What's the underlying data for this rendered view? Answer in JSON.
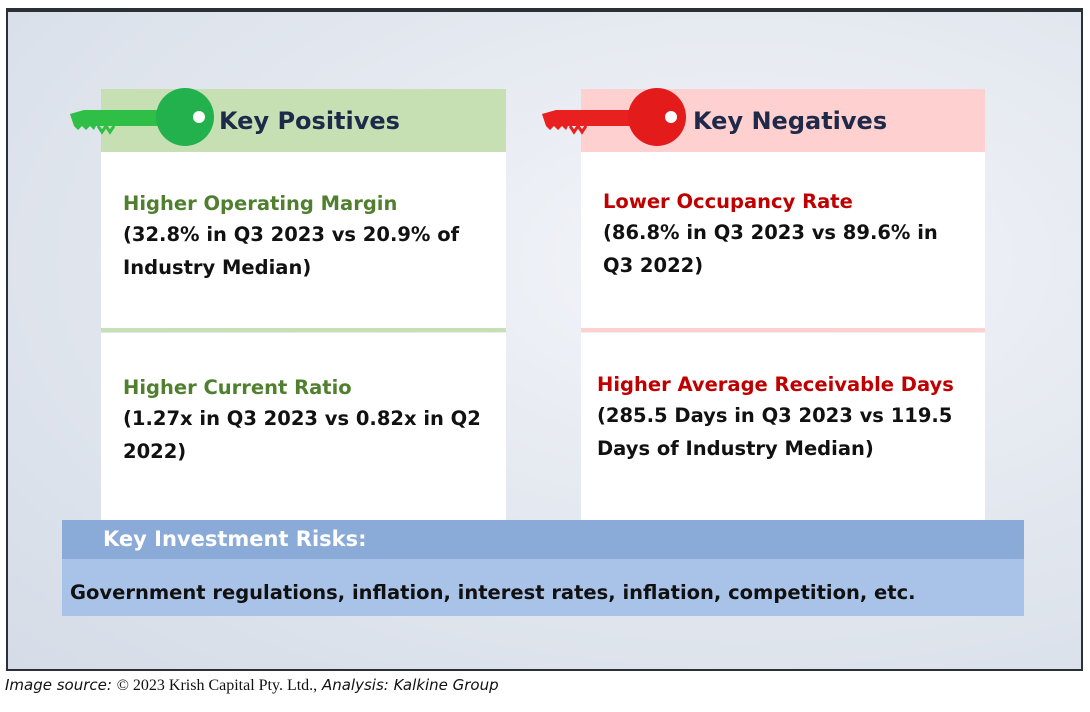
{
  "positives": {
    "title": "Key Positives",
    "color": "#22b14c",
    "items": [
      {
        "title": "Higher Operating Margin",
        "body": "(32.8% in Q3 2023 vs 20.9% of Industry Median)"
      },
      {
        "title": "Higher Current Ratio",
        "body": "(1.27x in Q3 2023 vs 0.82x in Q2 2022)"
      }
    ]
  },
  "negatives": {
    "title": "Key Negatives",
    "color": "#e41b1b",
    "items": [
      {
        "title": "Lower Occupancy Rate",
        "body": "(86.8% in Q3 2023 vs 89.6% in Q3 2022)"
      },
      {
        "title": "Higher Average Receivable Days",
        "body": "(285.5 Days in Q3 2023 vs 119.5 Days of Industry Median)"
      }
    ]
  },
  "risks": {
    "title": "Key Investment Risks:",
    "body": "Government regulations, inflation, interest rates, inflation, competition, etc."
  },
  "source": {
    "label": "Image source:",
    "holder": "© 2023 Krish Capital Pty. Ltd.,",
    "analysis": "Analysis: Kalkine Group"
  },
  "icons": [
    "green-key-icon",
    "red-key-icon"
  ]
}
